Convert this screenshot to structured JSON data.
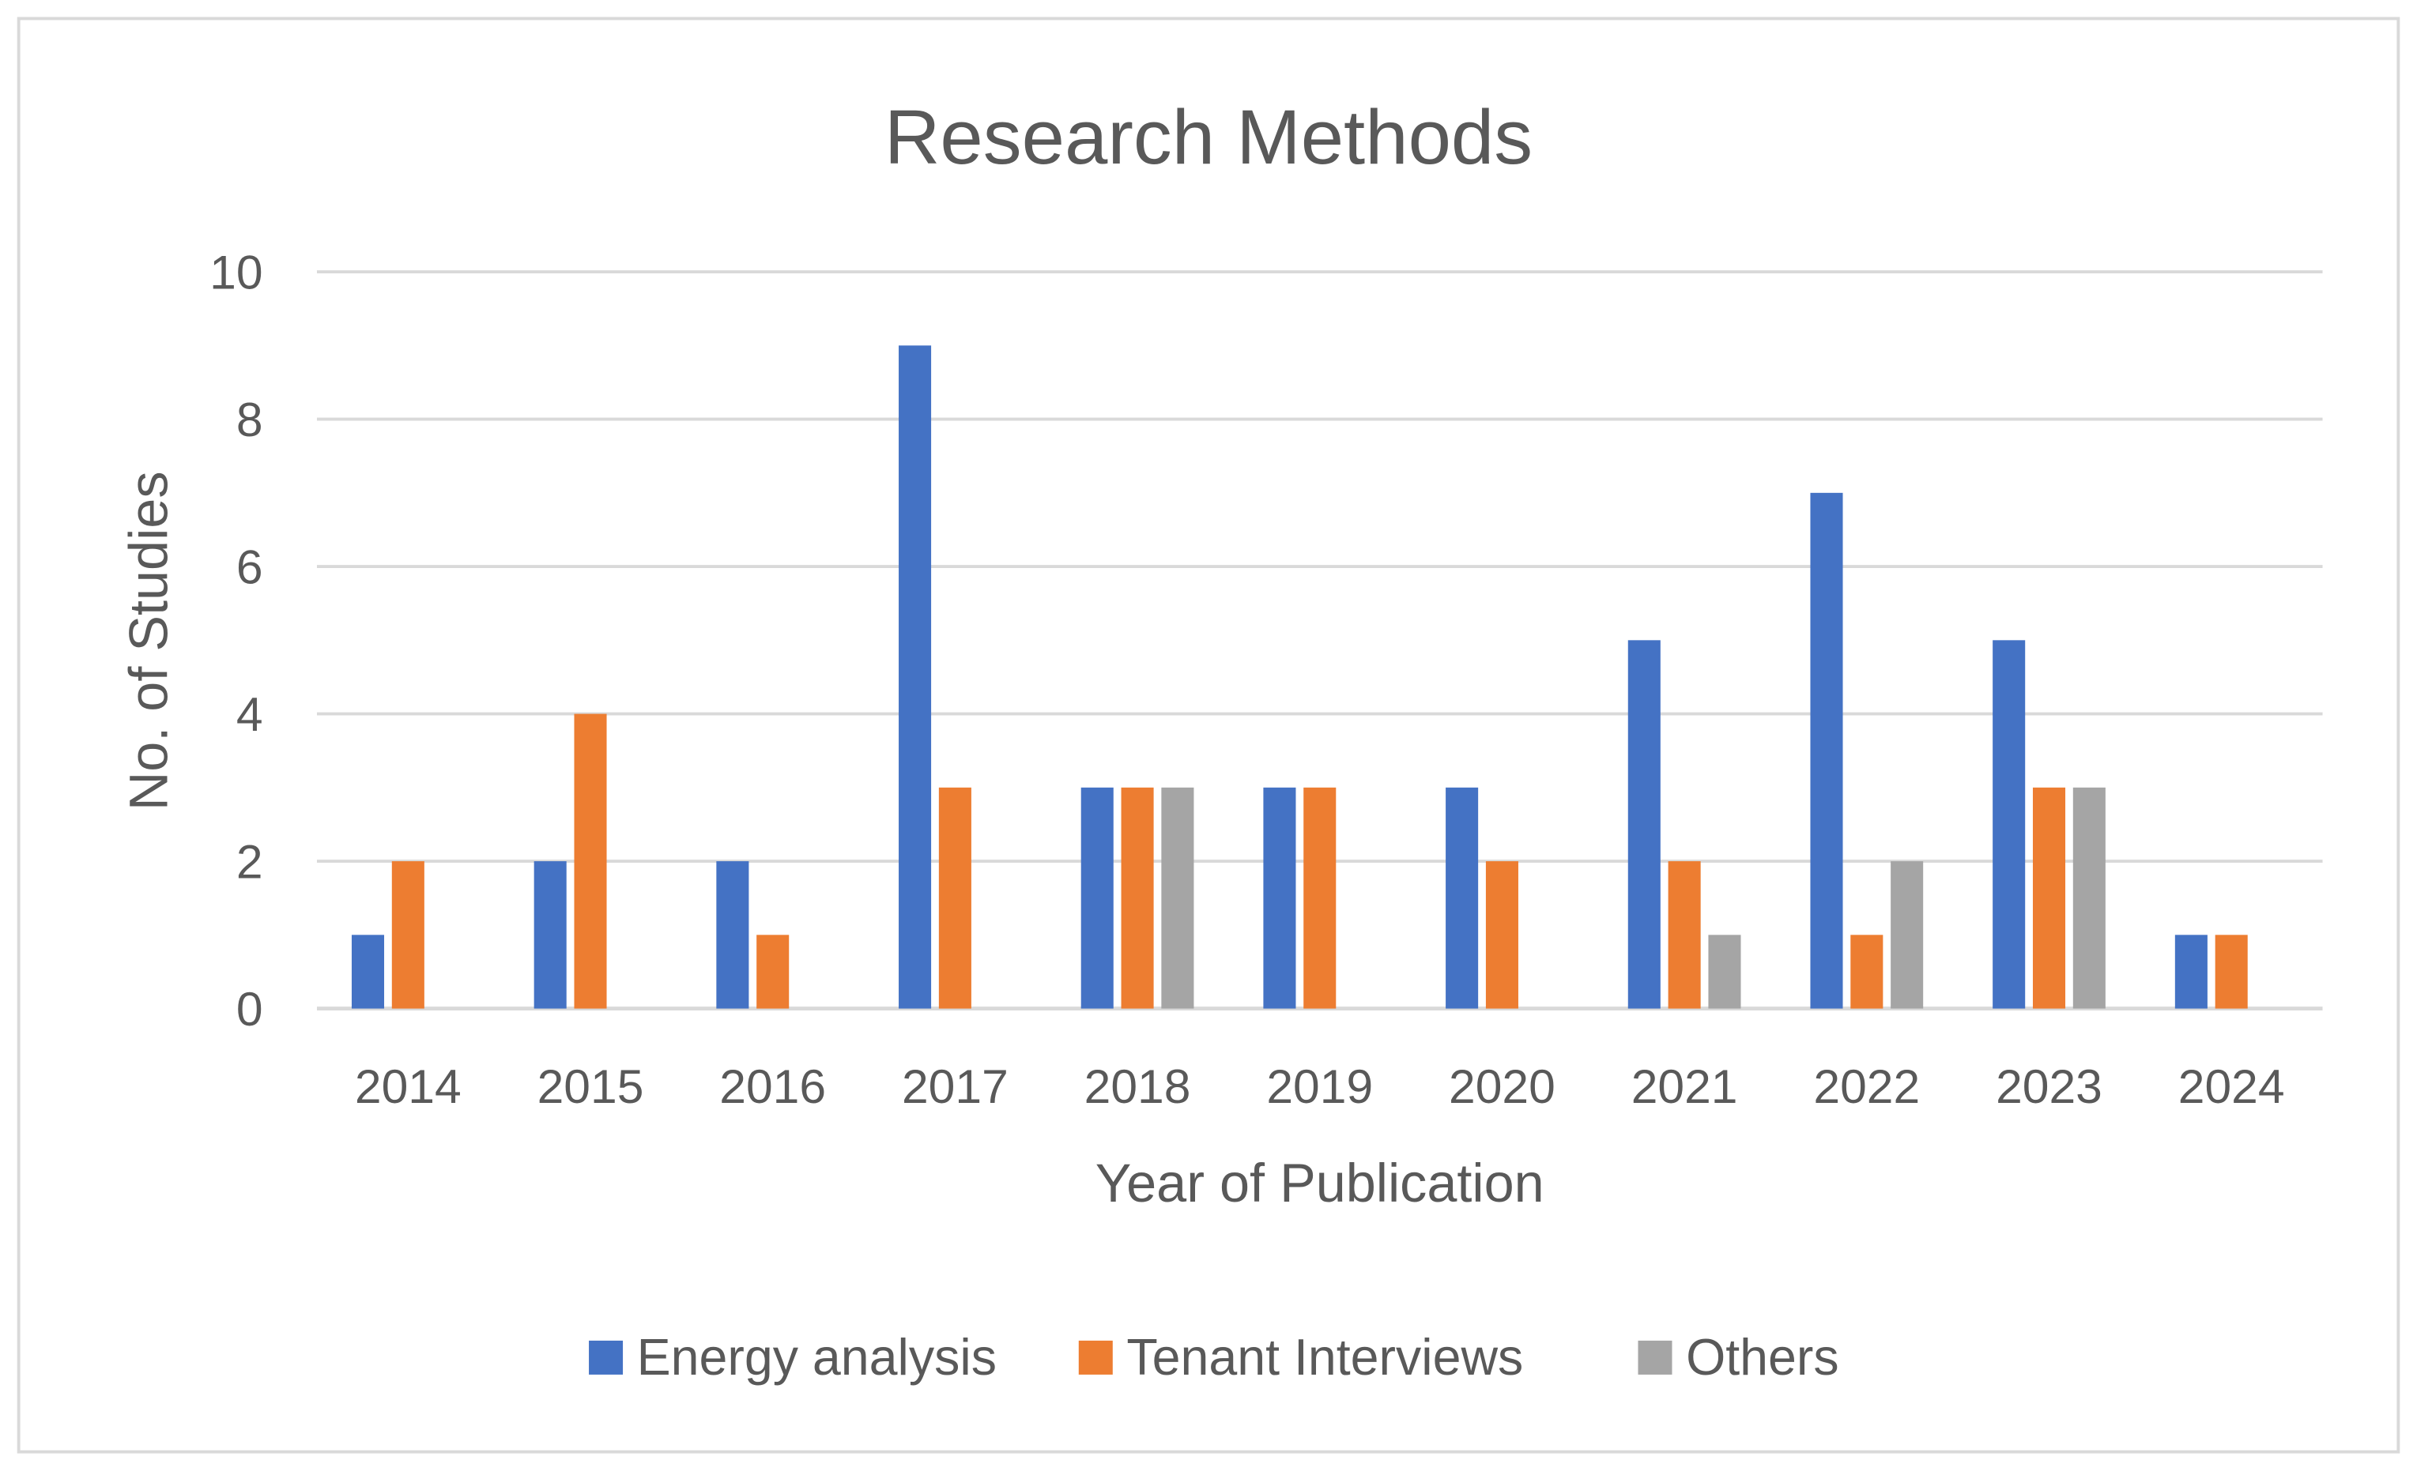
{
  "chart_data": {
    "type": "bar",
    "title": "Research Methods",
    "xlabel": "Year of Publication",
    "ylabel": "No. of Studies",
    "categories": [
      "2014",
      "2015",
      "2016",
      "2017",
      "2018",
      "2019",
      "2020",
      "2021",
      "2022",
      "2023",
      "2024"
    ],
    "series": [
      {
        "name": "Energy analysis",
        "color": "#4472C4",
        "values": [
          1,
          2,
          2,
          9,
          3,
          3,
          3,
          5,
          7,
          5,
          1
        ]
      },
      {
        "name": "Tenant Interviews",
        "color": "#ED7D31",
        "values": [
          2,
          4,
          1,
          3,
          3,
          3,
          2,
          2,
          1,
          3,
          1
        ]
      },
      {
        "name": "Others",
        "color": "#A5A5A5",
        "values": [
          0,
          0,
          0,
          0,
          3,
          0,
          0,
          1,
          2,
          3,
          0
        ]
      }
    ],
    "ylim": [
      0,
      10
    ],
    "yticks": [
      "0",
      "2",
      "4",
      "6",
      "8",
      "10"
    ],
    "grid": true,
    "legend_position": "bottom"
  }
}
